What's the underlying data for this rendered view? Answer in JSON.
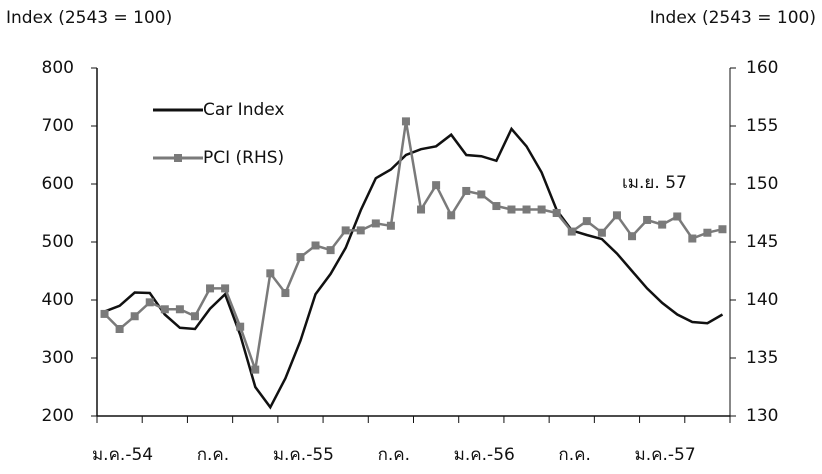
{
  "chart_data": {
    "type": "line",
    "y_label": "Index (2543 = 100)",
    "y2_label": "Index (2543 = 100)",
    "annotation": "เม.ย. 57",
    "categories": [
      "ม.ค.-54",
      null,
      null,
      null,
      null,
      null,
      "ก.ค.",
      null,
      null,
      null,
      null,
      null,
      "ม.ค.-55",
      null,
      null,
      null,
      null,
      null,
      "ก.ค.",
      null,
      null,
      null,
      null,
      null,
      "ม.ค.-56",
      null,
      null,
      null,
      null,
      null,
      "ก.ค.",
      null,
      null,
      null,
      null,
      null,
      "ม.ค.-57",
      null,
      null,
      null,
      null,
      null
    ],
    "ylim": [
      200,
      800
    ],
    "yticks": [
      200,
      300,
      400,
      500,
      600,
      700,
      800
    ],
    "y2lim": [
      130,
      160
    ],
    "y2ticks": [
      130,
      135,
      140,
      145,
      150,
      155,
      160
    ],
    "series": [
      {
        "name": "Car Index",
        "color": "#111111",
        "values": [
          380,
          390,
          413,
          412,
          375,
          352,
          350,
          385,
          410,
          340,
          250,
          215,
          265,
          330,
          410,
          445,
          490,
          555,
          610,
          625,
          650,
          660,
          665,
          685,
          650,
          648,
          640,
          695,
          665,
          620,
          555,
          520,
          512,
          505,
          480,
          450,
          420,
          395,
          375,
          362,
          360,
          375
        ]
      },
      {
        "name": "PCI (RHS)",
        "color": "#7a7a7a",
        "axis": "y2",
        "values": [
          138.8,
          137.5,
          138.6,
          139.8,
          139.2,
          139.2,
          138.6,
          141,
          141,
          137.7,
          134,
          142.3,
          140.6,
          143.7,
          144.7,
          144.3,
          146,
          146,
          146.6,
          146.4,
          155.4,
          147.8,
          149.9,
          147.3,
          149.4,
          149.1,
          148.1,
          147.8,
          147.8,
          147.8,
          147.5,
          145.9,
          146.8,
          145.8,
          147.3,
          145.5,
          146.9,
          146.5,
          147.2,
          145.3,
          145.8,
          146.1
        ]
      }
    ]
  }
}
